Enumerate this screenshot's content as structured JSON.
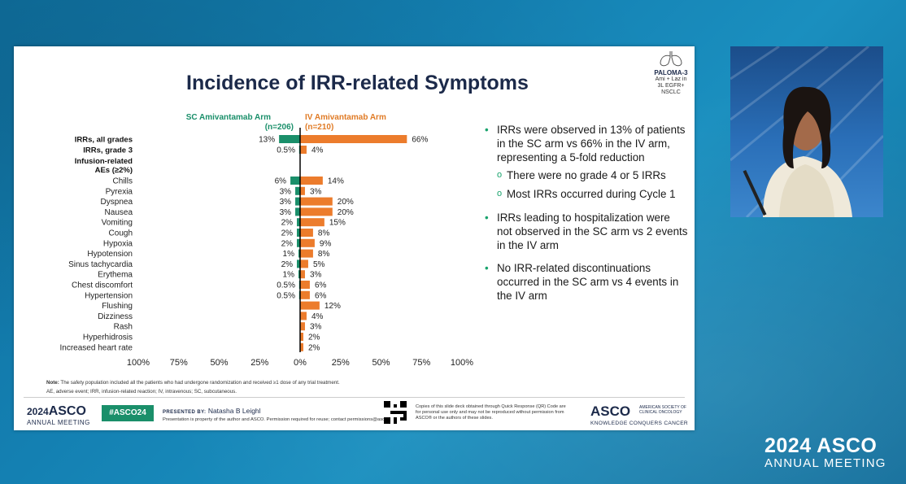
{
  "slide_title": "Incidence of IRR-related Symptoms",
  "study_badge": {
    "title": "PALOMA-3",
    "line2": "Ami + Laz in",
    "line3": "3L EGFR+ NSCLC"
  },
  "chart_data": {
    "type": "bar",
    "orientation": "horizontal-diverging",
    "categories": [
      "IRRs, all grades",
      "IRRs, grade 3",
      "Chills",
      "Pyrexia",
      "Dyspnea",
      "Nausea",
      "Vomiting",
      "Cough",
      "Hypoxia",
      "Hypotension",
      "Sinus tachycardia",
      "Erythema",
      "Chest discomfort",
      "Hypertension",
      "Flushing",
      "Dizziness",
      "Rash",
      "Hyperhidrosis",
      "Increased heart rate"
    ],
    "group_label": "Infusion-related AEs (≥2%)",
    "series": [
      {
        "name": "SC Amivantamab Arm",
        "n": "(n=206)",
        "color": "#1a8f6a",
        "values": [
          13,
          0.5,
          6,
          3,
          3,
          3,
          2,
          2,
          2,
          1,
          2,
          1,
          0.5,
          0.5,
          0,
          0,
          0,
          0,
          0
        ],
        "labels": [
          "13%",
          "0.5%",
          "6%",
          "3%",
          "3%",
          "3%",
          "2%",
          "2%",
          "2%",
          "1%",
          "2%",
          "1%",
          "0.5%",
          "0.5%",
          "",
          "",
          "",
          "",
          ""
        ]
      },
      {
        "name": "IV Amivantamab Arm",
        "n": "(n=210)",
        "color": "#ec7c2c",
        "values": [
          66,
          4,
          14,
          3,
          20,
          20,
          15,
          8,
          9,
          8,
          5,
          3,
          6,
          6,
          12,
          4,
          3,
          2,
          2
        ],
        "labels": [
          "66%",
          "4%",
          "14%",
          "3%",
          "20%",
          "20%",
          "15%",
          "8%",
          "9%",
          "8%",
          "5%",
          "3%",
          "6%",
          "6%",
          "12%",
          "4%",
          "3%",
          "2%",
          "2%"
        ]
      }
    ],
    "x_ticks": [
      "100%",
      "75%",
      "50%",
      "25%",
      "0%",
      "25%",
      "50%",
      "75%",
      "100%"
    ],
    "xlim": [
      -100,
      100
    ]
  },
  "bullets": [
    {
      "text": "IRRs were observed in 13% of patients in the SC arm vs 66% in the IV arm, representing a 5-fold reduction",
      "sub": [
        "There were no grade 4 or 5 IRRs",
        "Most IRRs occurred during Cycle 1"
      ]
    },
    {
      "text": "IRRs leading to hospitalization were not observed in the SC arm vs 2 events in the IV arm",
      "sub": []
    },
    {
      "text": "No IRR-related discontinuations occurred in the SC arm vs 4 events in the IV arm",
      "sub": []
    }
  ],
  "notes": {
    "note_label": "Note:",
    "note_text": " The safety population included all the patients who had undergone randomization and received ≥1 dose of any trial treatment.",
    "abbrev": "AE, adverse event; IRR, infusion-related reaction; IV, intravenous; SC, subcutaneous."
  },
  "footer": {
    "year": "2024",
    "asco": "ASCO",
    "annual_meeting": "ANNUAL MEETING",
    "hashtag": "#ASCO24",
    "presented_label": "PRESENTED BY:",
    "presenter": "Natasha B Leighl",
    "property": "Presentation is property of the author and ASCO. Permission required for reuse; contact permissions@asco.org",
    "qr_text": "Copies of this slide deck obtained through Quick Response (QR) Code are for personal use only and may not be reproduced without permission from ASCO® or the authors of these slides.",
    "asco_logo": "ASCO",
    "society": "AMERICAN SOCIETY OF CLINICAL ONCOLOGY",
    "tagline": "KNOWLEDGE CONQUERS CANCER"
  },
  "overlay_logo": {
    "line1": "2024 ASCO",
    "line2": "ANNUAL MEETING"
  }
}
